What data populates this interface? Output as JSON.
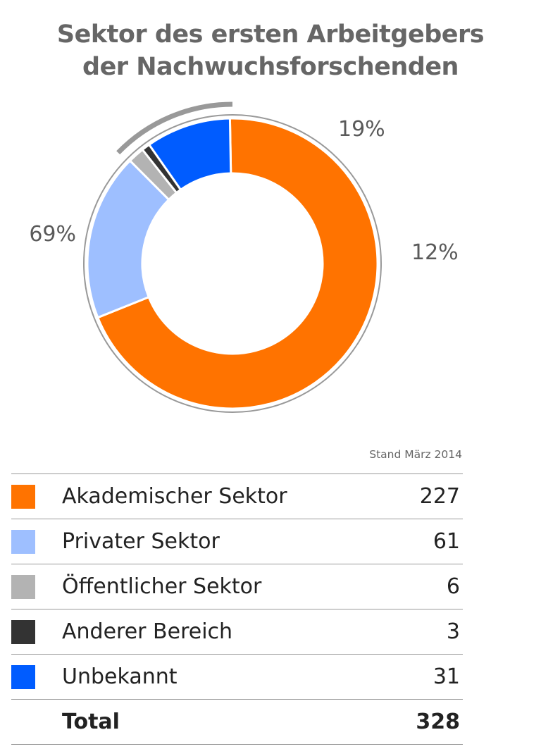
{
  "chart_data": {
    "type": "pie",
    "variant": "donut",
    "title_lines": [
      "Sektor des ersten Arbeitgebers",
      "der Nachwuchsforschenden"
    ],
    "slices": [
      {
        "label": "Akademischer Sektor",
        "value": 227,
        "color": "#FF7300"
      },
      {
        "label": "Privater Sektor",
        "value": 61,
        "color": "#9EBFFF"
      },
      {
        "label": "Öffentlicher Sektor",
        "value": 6,
        "color": "#B3B3B3"
      },
      {
        "label": "Anderer Bereich",
        "value": 3,
        "color": "#333333"
      },
      {
        "label": "Unbekannt",
        "value": 31,
        "color": "#005CFF"
      }
    ],
    "percent_labels": [
      {
        "text": "69%",
        "refers_to": [
          "Akademischer Sektor"
        ]
      },
      {
        "text": "19%",
        "refers_to": [
          "Privater Sektor"
        ]
      },
      {
        "text": "12%",
        "refers_to": [
          "Öffentlicher Sektor",
          "Anderer Bereich",
          "Unbekannt"
        ]
      }
    ],
    "note": "Stand März 2014",
    "total_label": "Total",
    "total_value": 328,
    "outline_color": "#999999"
  }
}
